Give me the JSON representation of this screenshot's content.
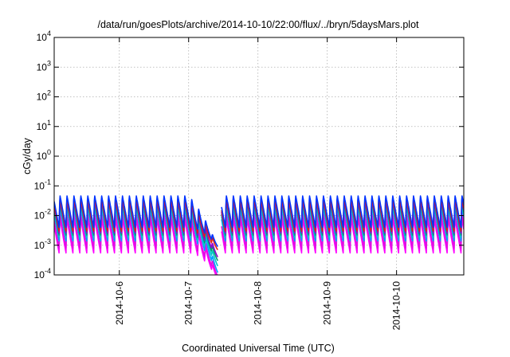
{
  "chart_data": {
    "type": "line",
    "title": "/data/run/goesPlots/archive/2014-10-10/22:00/flux/../bryn/5daysMars.plot",
    "xlabel": "Coordinated Universal Time (UTC)",
    "ylabel": "cGy/day",
    "yscale": "log",
    "ylim": [
      0.0001,
      10000
    ],
    "x_range_days": [
      5.06,
      10.97
    ],
    "x_ticks": [
      {
        "label": "2014-10-6",
        "value": 6
      },
      {
        "label": "2014-10-7",
        "value": 7
      },
      {
        "label": "2014-10-8",
        "value": 8
      },
      {
        "label": "2014-10-9",
        "value": 9
      },
      {
        "label": "2014-10-10",
        "value": 10
      }
    ],
    "y_ticks": [
      {
        "base": "10",
        "exp": "-4",
        "value": 0.0001
      },
      {
        "base": "10",
        "exp": "-3",
        "value": 0.001
      },
      {
        "base": "10",
        "exp": "-2",
        "value": 0.01
      },
      {
        "base": "10",
        "exp": "-1",
        "value": 0.1
      },
      {
        "base": "10",
        "exp": "0",
        "value": 1
      },
      {
        "base": "10",
        "exp": "1",
        "value": 10
      },
      {
        "base": "10",
        "exp": "2",
        "value": 100
      },
      {
        "base": "10",
        "exp": "3",
        "value": 1000
      },
      {
        "base": "10",
        "exp": "4",
        "value": 10000
      }
    ],
    "grid": true,
    "periodic_pattern": {
      "period_days": 0.1,
      "phase_days": 0.03,
      "gap_days": [
        7.42,
        7.47
      ]
    },
    "series": [
      {
        "color": "#ff00ff",
        "peak": 0.008,
        "trough": 0.00055
      },
      {
        "color": "#e010e0",
        "peak": 0.012,
        "trough": 0.0008
      },
      {
        "color": "#00a0ff",
        "peak": 0.02,
        "trough": 0.0014
      },
      {
        "color": "#00c8c8",
        "peak": 0.025,
        "trough": 0.0018
      },
      {
        "color": "#009e73",
        "peak": 0.03,
        "trough": 0.0022
      },
      {
        "color": "#9400d3",
        "peak": 0.035,
        "trough": 0.0026
      },
      {
        "color": "#e51e10",
        "peak": 0.04,
        "trough": 0.003
      },
      {
        "color": "#0033ff",
        "peak": 0.05,
        "trough": 0.004
      }
    ],
    "dip": {
      "start_day": 7.0,
      "end_day": 7.42,
      "min_values": [
        7e-05,
        9e-05,
        0.00012,
        0.0002,
        0.0003,
        0.0004,
        0.0007,
        0.0009
      ]
    }
  }
}
